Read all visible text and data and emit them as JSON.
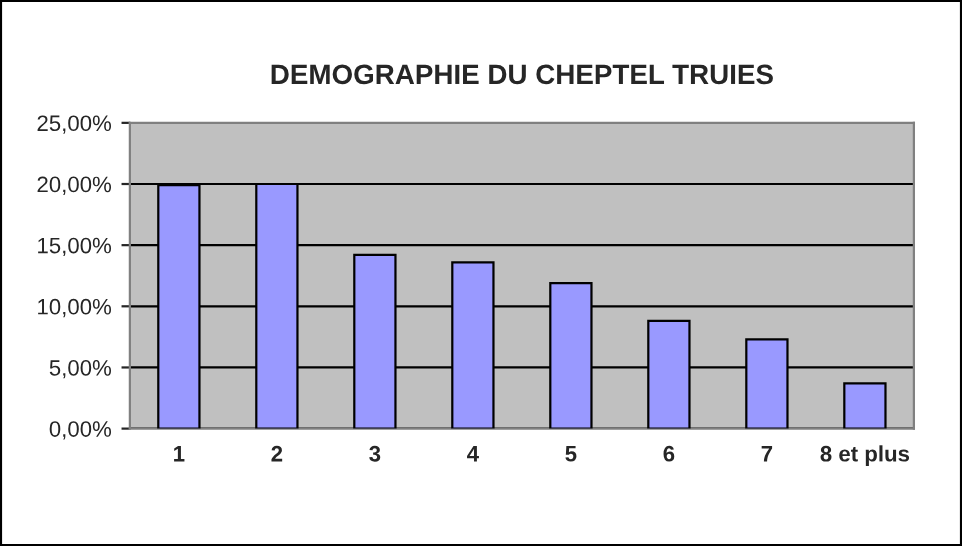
{
  "chart_data": {
    "type": "bar",
    "title": "DEMOGRAPHIE DU CHEPTEL TRUIES",
    "categories": [
      "1",
      "2",
      "3",
      "4",
      "5",
      "6",
      "7",
      "8 et plus"
    ],
    "series": [
      {
        "color": "#9999ff",
        "values": [
          19.9,
          20.0,
          14.2,
          13.6,
          11.9,
          8.8,
          7.3,
          3.7
        ]
      }
    ],
    "ylim": [
      0,
      25
    ],
    "yticks": [
      {
        "value": 0,
        "label": "0,00%"
      },
      {
        "value": 5,
        "label": "5,00%"
      },
      {
        "value": 10,
        "label": "10,00%"
      },
      {
        "value": 15,
        "label": "15,00%"
      },
      {
        "value": 20,
        "label": "20,00%"
      },
      {
        "value": 25,
        "label": "25,00%"
      }
    ],
    "grid": "y",
    "legend": false
  }
}
